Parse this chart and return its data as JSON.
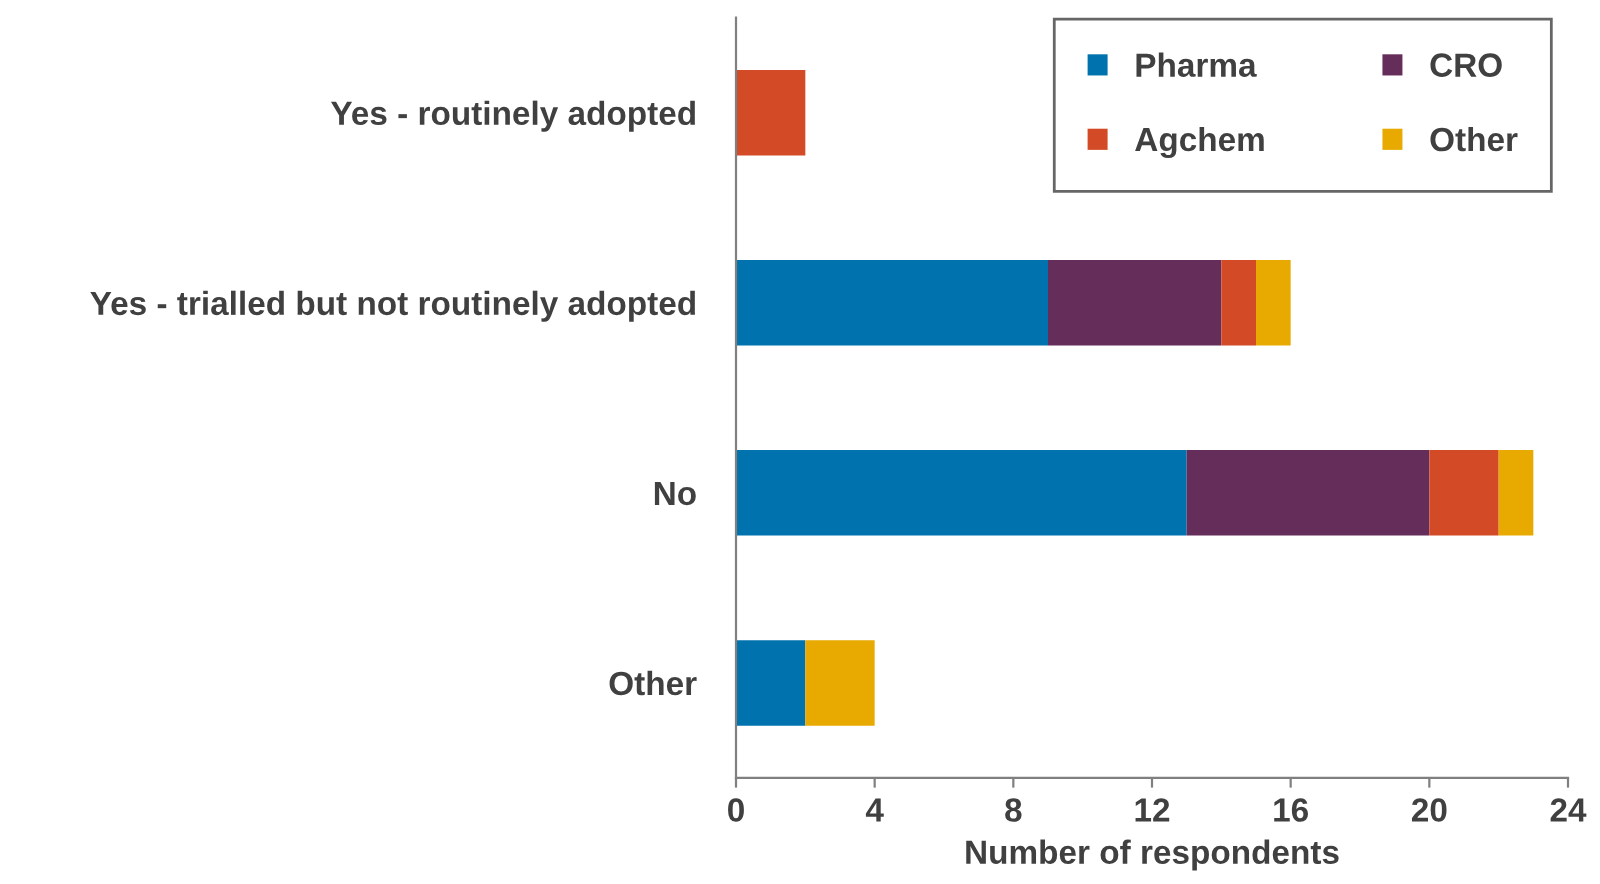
{
  "chart_data": {
    "type": "bar",
    "orientation": "horizontal",
    "stacked": true,
    "xlabel": "Number of respondents",
    "categories": [
      "Yes - routinely adopted",
      "Yes - trialled but not routinely adopted",
      "No",
      "Other"
    ],
    "series": [
      {
        "name": "Pharma",
        "color": "#0073ae",
        "values": [
          0,
          9,
          13,
          2
        ]
      },
      {
        "name": "CRO",
        "color": "#652d5a",
        "values": [
          0,
          5,
          7,
          0
        ]
      },
      {
        "name": "Agchem",
        "color": "#d24b26",
        "values": [
          2,
          1,
          2,
          0
        ]
      },
      {
        "name": "Other",
        "color": "#e8a900",
        "values": [
          0,
          1,
          1,
          2
        ]
      }
    ],
    "xlim": [
      0,
      24
    ],
    "xticks": [
      0,
      4,
      8,
      12,
      16,
      20,
      24
    ],
    "grid": false,
    "legend": "top right"
  }
}
